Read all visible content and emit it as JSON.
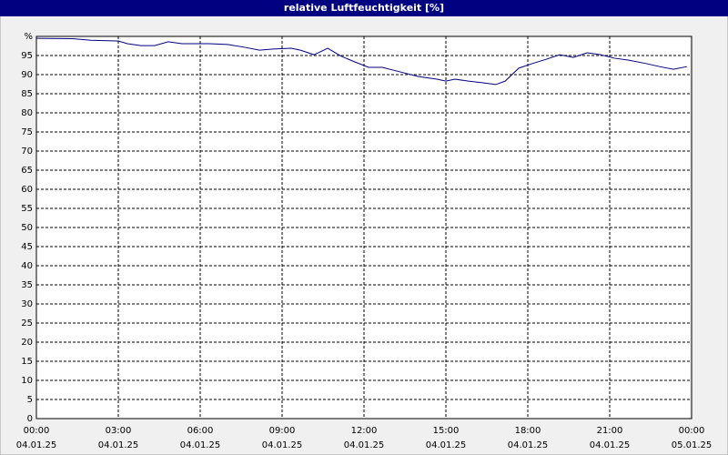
{
  "chart_data": {
    "type": "line",
    "title": "relative Luftfeuchtigkeit [%]",
    "x": [
      0,
      1.33,
      2,
      3,
      3.33,
      3.83,
      4.33,
      4.83,
      5.33,
      6.33,
      7,
      7.67,
      8.17,
      8.67,
      9.33,
      9.67,
      10.17,
      10.67,
      11.17,
      11.67,
      12.17,
      12.67,
      13.33,
      14,
      14.67,
      15,
      15.33,
      15.83,
      16.33,
      16.83,
      17.17,
      17.67,
      18.17,
      18.67,
      19.17,
      19.67,
      20.17,
      20.67,
      21.17,
      21.67,
      22.33,
      22.83,
      23.33,
      23.83
    ],
    "series": [
      {
        "color": "#000080",
        "values": [
          99.5,
          99.4,
          99,
          98.8,
          98.1,
          97.6,
          97.6,
          98.6,
          98.1,
          98.1,
          97.9,
          97.1,
          96.4,
          96.7,
          96.9,
          96.4,
          95.2,
          96.9,
          94.8,
          93.3,
          91.9,
          91.9,
          90.7,
          89.5,
          88.8,
          88.3,
          88.8,
          88.3,
          87.9,
          87.4,
          88.3,
          91.7,
          92.9,
          94,
          95.2,
          94.5,
          95.7,
          95.2,
          94.3,
          93.8,
          92.9,
          92.1,
          91.4,
          92.1
        ]
      }
    ],
    "xlim": [
      0,
      24
    ],
    "xticks": [
      {
        "value": 0,
        "label": "00:00",
        "date": "04.01.25"
      },
      {
        "value": 3,
        "label": "03:00",
        "date": "04.01.25"
      },
      {
        "value": 6,
        "label": "06:00",
        "date": "04.01.25"
      },
      {
        "value": 9,
        "label": "09:00",
        "date": "04.01.25"
      },
      {
        "value": 12,
        "label": "12:00",
        "date": "04.01.25"
      },
      {
        "value": 15,
        "label": "15:00",
        "date": "04.01.25"
      },
      {
        "value": 18,
        "label": "18:00",
        "date": "04.01.25"
      },
      {
        "value": 21,
        "label": "21:00",
        "date": "04.01.25"
      },
      {
        "value": 24,
        "label": "00:00",
        "date": "05.01.25"
      }
    ],
    "ylim": [
      0,
      100
    ],
    "yticks": [
      0,
      5,
      10,
      15,
      20,
      25,
      30,
      35,
      40,
      45,
      50,
      55,
      60,
      65,
      70,
      75,
      80,
      85,
      90,
      95,
      {
        "value": 100,
        "label": "%"
      }
    ],
    "grid": true
  }
}
